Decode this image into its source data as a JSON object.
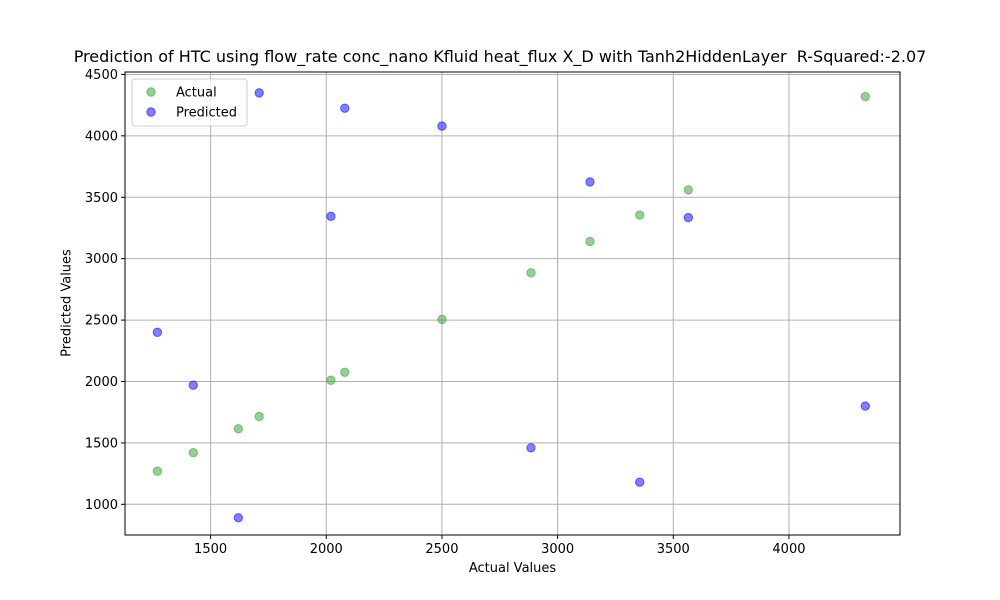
{
  "chart_data": {
    "type": "scatter",
    "title": "Prediction of HTC using flow_rate conc_nano Kfluid heat_flux X_D with Tanh2HiddenLayer  R-Squared:-2.07",
    "xlabel": "Actual Values",
    "ylabel": "Predicted Values",
    "xlim": [
      1130,
      4480
    ],
    "ylim": [
      750,
      4520
    ],
    "xticks": [
      1500,
      2000,
      2500,
      3000,
      3500,
      4000
    ],
    "yticks": [
      1000,
      1500,
      2000,
      2500,
      3000,
      3500,
      4000,
      4500
    ],
    "grid": true,
    "legend_position": "top-left",
    "series": [
      {
        "name": "Actual",
        "color": "#2ca02c",
        "points": [
          {
            "x": 1270,
            "y": 1270
          },
          {
            "x": 1425,
            "y": 1420
          },
          {
            "x": 1620,
            "y": 1615
          },
          {
            "x": 1710,
            "y": 1715
          },
          {
            "x": 2020,
            "y": 2010
          },
          {
            "x": 2080,
            "y": 2075
          },
          {
            "x": 2500,
            "y": 2505
          },
          {
            "x": 2885,
            "y": 2885
          },
          {
            "x": 3140,
            "y": 3140
          },
          {
            "x": 3355,
            "y": 3355
          },
          {
            "x": 3565,
            "y": 3560
          },
          {
            "x": 4330,
            "y": 4320
          }
        ]
      },
      {
        "name": "Predicted",
        "color": "#0000ff",
        "points": [
          {
            "x": 1270,
            "y": 2400
          },
          {
            "x": 1425,
            "y": 1970
          },
          {
            "x": 1620,
            "y": 890
          },
          {
            "x": 1710,
            "y": 4350
          },
          {
            "x": 2020,
            "y": 3345
          },
          {
            "x": 2080,
            "y": 4225
          },
          {
            "x": 2500,
            "y": 4080
          },
          {
            "x": 2885,
            "y": 1460
          },
          {
            "x": 3140,
            "y": 3625
          },
          {
            "x": 3355,
            "y": 1180
          },
          {
            "x": 3565,
            "y": 3335
          },
          {
            "x": 4330,
            "y": 1800
          }
        ]
      }
    ]
  }
}
